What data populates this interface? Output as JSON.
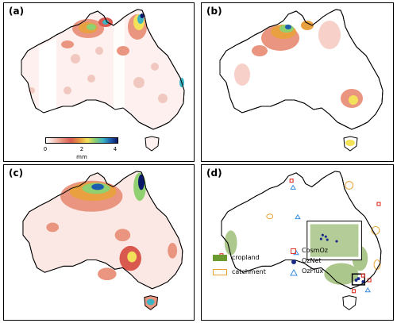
{
  "panels": {
    "a": {
      "label": "(a)"
    },
    "b": {
      "label": "(b)"
    },
    "c": {
      "label": "(c)"
    },
    "d": {
      "label": "(d)"
    }
  },
  "colorbar": {
    "ticks": [
      "0",
      "2",
      "4"
    ],
    "unit": "mm",
    "colors": [
      "#ffffff",
      "#f6d0c9",
      "#e9957f",
      "#d9594f",
      "#e8a040",
      "#f4e15a",
      "#90d070",
      "#3cb4c4",
      "#1a5cae",
      "#0a1868"
    ]
  },
  "legend": {
    "cropland": "cropland",
    "catchment": "catchment",
    "cosmoz": "CosmOz",
    "oznet": "OzNet",
    "ozflux": "OzFlux"
  },
  "colors": {
    "cropland": "#6a9a30",
    "catchment": "#e8a030",
    "cosmoz": "#e03a2e",
    "oznet": "#1a2a8a",
    "ozflux": "#3a8ee0",
    "land_outline": "#000000"
  }
}
